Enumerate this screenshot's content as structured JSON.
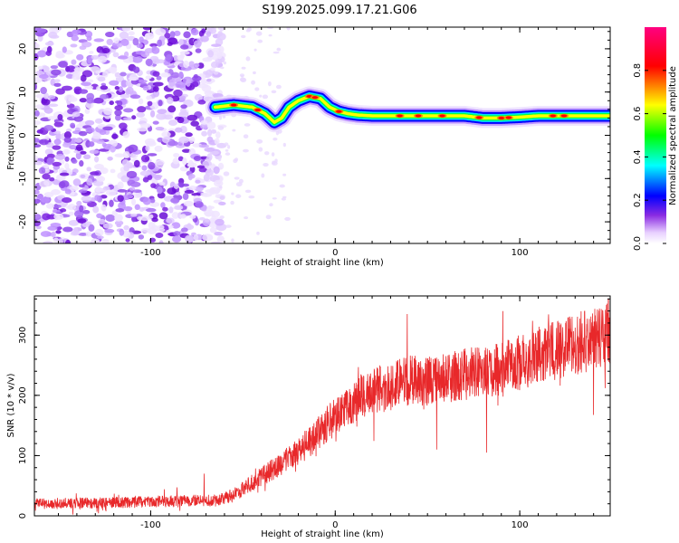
{
  "figure": {
    "title": "S199.2025.099.17.21.G06"
  },
  "chart_data": [
    {
      "type": "heatmap",
      "xlabel": "Height of straight line (km)",
      "ylabel": "Frequency (Hz)",
      "xlim": [
        -163,
        149
      ],
      "ylim": [
        -25,
        25
      ],
      "x_ticks": [
        -100,
        0,
        100
      ],
      "y_ticks": [
        -20,
        -10,
        0,
        10,
        20
      ],
      "colorbar": {
        "label": "Normalized spectral amplitude",
        "range": [
          0,
          1
        ],
        "ticks": [
          0.0,
          0.2,
          0.4,
          0.6,
          0.8
        ],
        "colors": [
          "#ffffff",
          "#7b00ff",
          "#0000ff",
          "#00ffff",
          "#00ff00",
          "#ffff00",
          "#ff0000",
          "#ff0080"
        ]
      },
      "noise_region_x": [
        -163,
        -65
      ],
      "ridge": {
        "x": [
          -65,
          -55,
          -45,
          -38,
          -33,
          -29,
          -25,
          -20,
          -14,
          -8,
          -3,
          2,
          7,
          12,
          20,
          40,
          60,
          70,
          80,
          90,
          100,
          110,
          120,
          130,
          140,
          149
        ],
        "y": [
          6.5,
          7.0,
          6.5,
          5.0,
          3.0,
          4.0,
          6.5,
          8.0,
          9.0,
          8.5,
          6.5,
          5.5,
          5.0,
          4.7,
          4.5,
          4.5,
          4.5,
          4.5,
          4.0,
          4.0,
          4.2,
          4.5,
          4.5,
          4.5,
          4.5,
          4.5
        ]
      }
    },
    {
      "type": "line",
      "xlabel": "Height of straight line (km)",
      "ylabel": "SNR (10 * v/v)",
      "xlim": [
        -163,
        149
      ],
      "ylim": [
        0,
        365
      ],
      "x_ticks": [
        -100,
        0,
        100
      ],
      "y_ticks": [
        0,
        100,
        200,
        300
      ],
      "color": "#e8282a",
      "trend": {
        "x": [
          -163,
          -120,
          -80,
          -65,
          -55,
          -45,
          -35,
          -25,
          -15,
          -5,
          5,
          15,
          25,
          40,
          55,
          70,
          90,
          110,
          130,
          149
        ],
        "y": [
          20,
          22,
          25,
          25,
          35,
          55,
          75,
          95,
          120,
          150,
          180,
          200,
          210,
          225,
          225,
          235,
          245,
          265,
          285,
          300
        ]
      },
      "spikes": [
        {
          "x": -71,
          "y": 70
        },
        {
          "x": 39,
          "y": 335
        },
        {
          "x": 55,
          "y": 110
        },
        {
          "x": 82,
          "y": 105
        },
        {
          "x": 127,
          "y": 330
        },
        {
          "x": 148,
          "y": 360
        }
      ]
    }
  ]
}
